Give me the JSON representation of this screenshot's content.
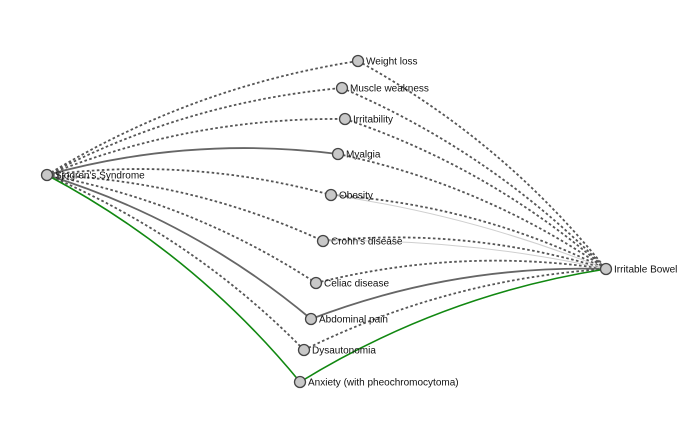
{
  "graph": {
    "style": {
      "node_fill": "#c8c8c8",
      "node_stroke": "#444444",
      "dotted_edge_color": "#555555",
      "solid_edge_color": "#666666",
      "highlight_edge_color": "#118811",
      "background": "#ffffff"
    },
    "source": {
      "id": "sjogren",
      "label": "Sjogren's Syndrome"
    },
    "target": {
      "id": "ibs",
      "label": "Irritable Bowel"
    },
    "nodes": [
      {
        "id": "weight-loss",
        "label": "Weight loss",
        "edge_to_source": "dotted",
        "edge_to_target": "dotted"
      },
      {
        "id": "muscle-weakness",
        "label": "Muscle weakness",
        "edge_to_source": "dotted",
        "edge_to_target": "dotted"
      },
      {
        "id": "irritability",
        "label": "Irritability",
        "edge_to_source": "dotted",
        "edge_to_target": "dotted"
      },
      {
        "id": "myalgia",
        "label": "Myalgia",
        "edge_to_source": "solid",
        "edge_to_target": "dotted"
      },
      {
        "id": "obesity",
        "label": "Obesity",
        "edge_to_source": "dotted",
        "edge_to_target": "dotted"
      },
      {
        "id": "crohns-disease",
        "label": "Crohn's disease",
        "edge_to_source": "dotted",
        "edge_to_target": "dotted"
      },
      {
        "id": "celiac-disease",
        "label": "Celiac disease",
        "edge_to_source": "dotted",
        "edge_to_target": "dotted"
      },
      {
        "id": "abdominal-pain",
        "label": "Abdominal pain",
        "edge_to_source": "solid",
        "edge_to_target": "solid"
      },
      {
        "id": "dysautonomia",
        "label": "Dysautonomia",
        "edge_to_source": "dotted",
        "edge_to_target": "dotted"
      },
      {
        "id": "anxiety",
        "label": "Anxiety (with pheochromocytoma)",
        "edge_to_source": "highlight",
        "edge_to_target": "highlight"
      }
    ]
  }
}
